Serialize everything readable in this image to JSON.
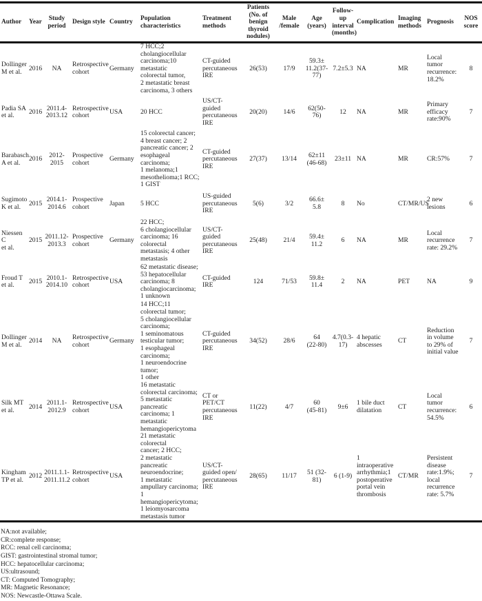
{
  "columns": [
    {
      "label": "Author",
      "align": "l"
    },
    {
      "label": "Year",
      "align": "c"
    },
    {
      "label": "Study period",
      "align": "c"
    },
    {
      "label": "Design style",
      "align": "l"
    },
    {
      "label": "Country",
      "align": "l"
    },
    {
      "label": "Population characteristics",
      "align": "l"
    },
    {
      "label": "Treatment methods",
      "align": "l"
    },
    {
      "label": "Patients (No. of benign thyroid nodules)",
      "align": "c"
    },
    {
      "label": "Male /female",
      "align": "c"
    },
    {
      "label": "Age (years)",
      "align": "c"
    },
    {
      "label": "Follow-up interval (months)",
      "align": "c"
    },
    {
      "label": "Complication",
      "align": "l"
    },
    {
      "label": "Imaging methods",
      "align": "l"
    },
    {
      "label": "Prognosis",
      "align": "l"
    },
    {
      "label": "NOS score",
      "align": "c"
    }
  ],
  "rows": [
    [
      "Dollinger\nM et al.",
      "2016",
      "NA",
      "Retrospective\ncohort",
      "Germany",
      "7 HCC;2\ncholangiocellular\ncarcinoma;10 metastatic\ncolorectal tumor,\n2 metastatic breast\ncarcinoma, 3 others",
      "CT-guided\npercutaneous\nIRE",
      "26(53)",
      "17/9",
      "59.3±\n11.2(37-\n77)",
      "7.2±5.3",
      "NA",
      "MR",
      "Local tumor\nrecurrence:\n18.2%",
      "8"
    ],
    [
      "Padia SA\net al.",
      "2016",
      "2011.4-\n2013.12",
      "Retrospective\ncohort",
      "USA",
      "20 HCC",
      "US/CT-guided\npercutaneous\nIRE",
      "20(20)",
      "14/6",
      "62(50-76)",
      "12",
      "NA",
      "MR",
      "Primary\nefficacy\nrate:90%",
      "7"
    ],
    [
      "Barabasch\nA et al.",
      "2016",
      "2012-\n2015",
      "Prospective\ncohort",
      "Germany",
      "15 colorectal cancer;\n4 breast cancer; 2\npancreatic cancer; 2\nesophageal carcinoma;\n1 melanoma;1\nmesothelioma;1 RCC;\n1 GIST",
      "CT-guided\npercutaneous\nIRE",
      "27(37)",
      "13/14",
      "62±11\n(46-68)",
      "23±11",
      "NA",
      "MR",
      "CR:57%",
      "7"
    ],
    [
      "Sugimoto\nK et al.",
      "2015",
      "2014.1-\n2014.6",
      "Prospective\ncohort",
      "Japan",
      "5 HCC",
      "US-guided\npercutaneous\nIRE",
      "5(6)",
      "3/2",
      "66.6±\n5.8",
      "8",
      "No",
      "CT/MR/US",
      "2 new\nlesions",
      "6"
    ],
    [
      "Niessen C\net al.",
      "2015",
      "2011.12-\n2013.3",
      "Prospective\ncohort",
      "Germany",
      "22 HCC;\n6 cholangiocellular\ncarcinoma; 16 colorectal\nmetastasis; 4 other\nmetastasis",
      "US/CT-guided\npercutaneous\nIRE",
      "25(48)",
      "21/4",
      "59.4±\n11.2",
      "6",
      "NA",
      "MR",
      "Local\nrecurrence\nrate: 29.2%",
      "7"
    ],
    [
      "Froud T\net al.",
      "2015",
      "2010.1-\n2014.10",
      "Retrospective\ncohort",
      "USA",
      "62 metastatic disease;\n53 hepatocellular\ncarcinoma; 8\ncholangiocarcinoma;\n1 unknown",
      "CT-guided IRE",
      "124",
      "71/53",
      "59.8±\n11.4",
      "2",
      "NA",
      "PET",
      "NA",
      "9"
    ],
    [
      "Dollinger\nM et al.",
      "2014",
      "NA",
      "Retrospective\ncohort",
      "Germany",
      "14 HCC;11\ncolorectal tumor;\n5 cholangiocellular\ncarcinoma;\n1 seminomatous\ntesticular tumor;\n1 esophageal carcinoma;\n1 neuroendocrine tumor;\n1 other",
      "CT-guided\npercutaneous\nIRE",
      "34(52)",
      "28/6",
      "64\n(22-80)",
      "4.7(0.3-\n17)",
      "4 hepatic\nabscesses",
      "CT",
      "Reduction\nin volume\nto 29% of\ninitial value",
      "7"
    ],
    [
      "Silk MT\net al.",
      "2014",
      "2011.1-\n2012.9",
      "Retrospective\ncohort",
      "USA",
      "16 metastatic\ncolorectal carcinoma;\n5 metastatic pancreatic\ncarcinoma; 1 metastatic\nhemangiopericytoma",
      "CT or PET/CT\npercutaneous\nIRE",
      "11(22)",
      "4/7",
      "60\n(45-81)",
      "9±6",
      "1 bile duct\ndilatation",
      "CT",
      "Local tumor\nrecurrence:\n54.5%",
      "6"
    ],
    [
      "Kingham\nTP et al.",
      "2012",
      "2011.1.1-\n2011.11.2",
      "Retrospective\ncohort",
      "USA",
      "21 metastatic colorectal\ncancer; 2 HCC;\n2 metastatic pancreatic\nneuroendocrine;\n1 metastatic\nampullary carcinoma;\n1 hemangiopericytoma;\n1 leiomyosarcoma\nmetastasis tumor",
      "US/CT-\nguided open/\npercutaneous\nIRE",
      "28(65)",
      "11/17",
      "51 (32-81)",
      "6 (1-9)",
      "1 intraoperative\narrhythmia;1\npostoperative\nportal vein\nthrombosis",
      "CT/MR",
      "Persistent\ndisease\nrate:1.9%;\nlocal\nrecurrence\nrate: 5.7%",
      "7"
    ]
  ],
  "footnotes": [
    "NA:not available;",
    "CR:complete response;",
    "RCC: renal cell carcinoma;",
    "GIST: gastrointestinal stromal tumor;",
    "HCC: hepatocellular carcinoma;",
    "US:ultrasound;",
    "CT: Computed Tomography;",
    "MR: Magnetic Resonance;",
    "NOS: Newcastle-Ottawa Scale."
  ]
}
